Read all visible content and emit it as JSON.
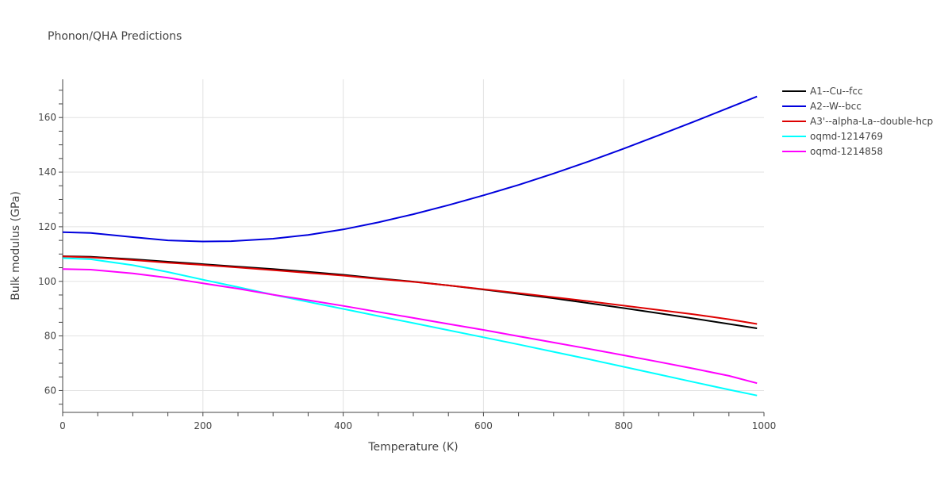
{
  "chart_data": {
    "type": "line",
    "title": "Phonon/QHA Predictions",
    "xlabel": "Temperature (K)",
    "ylabel": "Bulk modulus (GPa)",
    "xlim": [
      0,
      1000
    ],
    "ylim": [
      52,
      174
    ],
    "x_ticks": [
      0,
      200,
      400,
      600,
      800,
      1000
    ],
    "y_ticks": [
      60,
      80,
      100,
      120,
      140,
      160
    ],
    "grid": true,
    "legend_position": "top-right",
    "series": [
      {
        "name": "A1--Cu--fcc",
        "color": "#000000",
        "x": [
          0,
          40,
          100,
          150,
          200,
          250,
          300,
          350,
          400,
          450,
          500,
          550,
          600,
          650,
          700,
          750,
          800,
          850,
          900,
          950,
          990
        ],
        "y": [
          109.2,
          109.0,
          108.1,
          107.2,
          106.3,
          105.4,
          104.5,
          103.5,
          102.4,
          101.1,
          99.9,
          98.5,
          97.0,
          95.4,
          93.8,
          92.0,
          90.2,
          88.3,
          86.4,
          84.4,
          82.8
        ]
      },
      {
        "name": "A2--W--bcc",
        "color": "#0000dd",
        "x": [
          0,
          40,
          100,
          150,
          200,
          240,
          300,
          350,
          400,
          450,
          500,
          550,
          600,
          650,
          700,
          750,
          800,
          850,
          900,
          950,
          990
        ],
        "y": [
          118.0,
          117.7,
          116.2,
          115.0,
          114.6,
          114.7,
          115.6,
          117.0,
          119.0,
          121.6,
          124.6,
          127.9,
          131.5,
          135.3,
          139.5,
          143.9,
          148.6,
          153.5,
          158.5,
          163.6,
          167.7
        ]
      },
      {
        "name": "A3'--alpha-La--double-hcp",
        "color": "#dd0000",
        "x": [
          0,
          40,
          100,
          150,
          200,
          250,
          300,
          350,
          400,
          450,
          500,
          550,
          600,
          650,
          700,
          750,
          800,
          850,
          900,
          950,
          990
        ],
        "y": [
          109.1,
          108.8,
          107.8,
          106.8,
          106.0,
          105.1,
          104.1,
          103.1,
          102.1,
          100.9,
          99.8,
          98.5,
          97.1,
          95.7,
          94.2,
          92.7,
          91.1,
          89.5,
          87.9,
          86.1,
          84.4
        ]
      },
      {
        "name": "oqmd-1214769",
        "color": "#00ffff",
        "x": [
          0,
          40,
          100,
          150,
          200,
          250,
          300,
          350,
          400,
          450,
          500,
          550,
          600,
          650,
          700,
          750,
          800,
          850,
          900,
          950,
          990
        ],
        "y": [
          108.5,
          108.1,
          105.9,
          103.4,
          100.6,
          97.9,
          95.1,
          92.5,
          89.9,
          87.3,
          84.7,
          82.1,
          79.5,
          76.9,
          74.2,
          71.5,
          68.7,
          65.9,
          63.1,
          60.3,
          58.2
        ]
      },
      {
        "name": "oqmd-1214858",
        "color": "#ff00ff",
        "x": [
          0,
          40,
          100,
          150,
          200,
          250,
          300,
          350,
          400,
          450,
          500,
          550,
          600,
          650,
          700,
          750,
          800,
          850,
          900,
          950,
          990
        ],
        "y": [
          104.5,
          104.3,
          102.9,
          101.3,
          99.3,
          97.3,
          95.1,
          93.1,
          91.0,
          88.8,
          86.6,
          84.4,
          82.2,
          79.9,
          77.6,
          75.3,
          72.9,
          70.5,
          68.0,
          65.4,
          62.7
        ]
      }
    ]
  }
}
